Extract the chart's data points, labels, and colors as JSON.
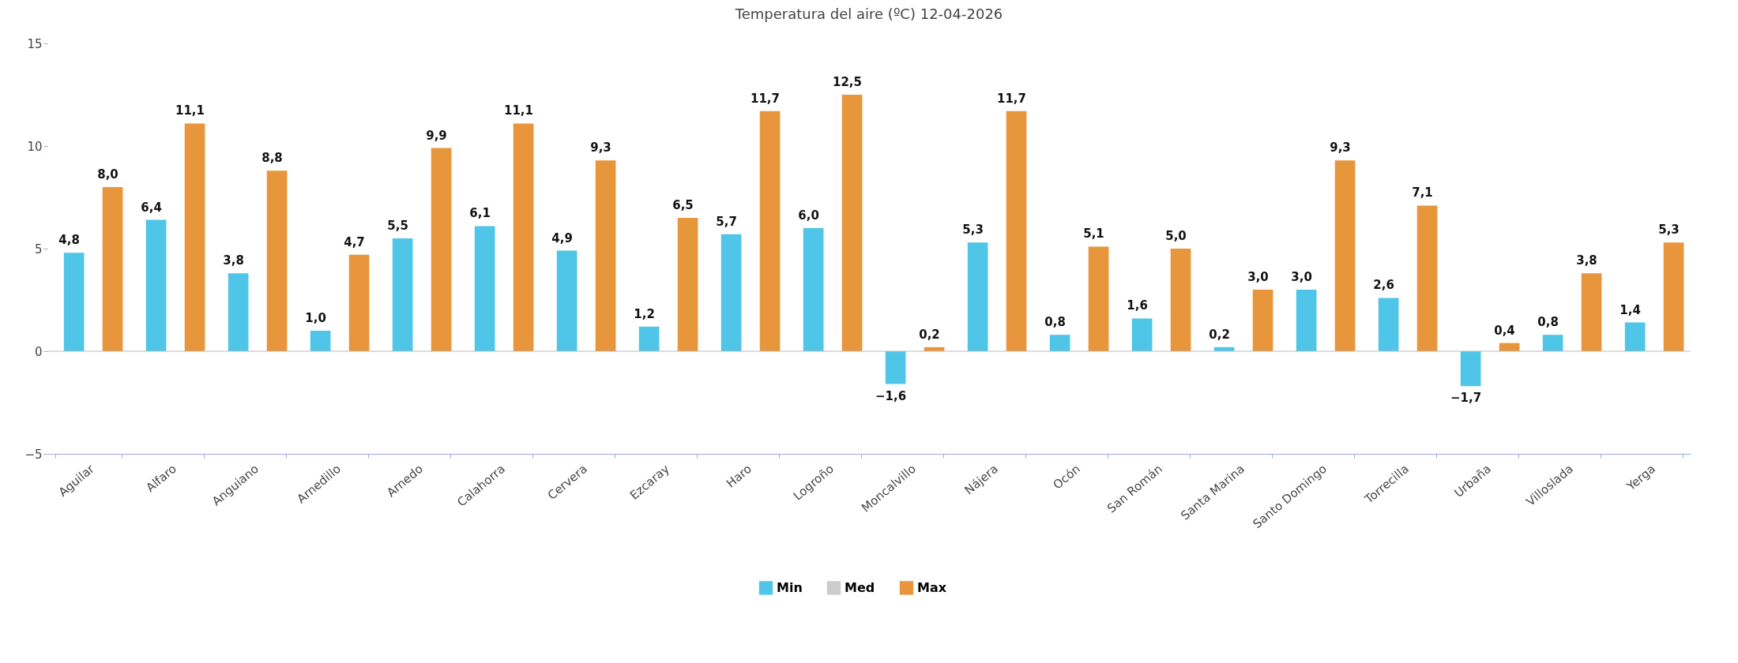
{
  "chart_data": {
    "type": "bar",
    "title": "Temperatura del aire (ºC) 12-04-2026",
    "categories": [
      "Aguilar",
      "Alfaro",
      "Anguiano",
      "Arnedillo",
      "Arnedo",
      "Calahorra",
      "Cervera",
      "Ezcaray",
      "Haro",
      "Logroño",
      "Moncalvillo",
      "Nájera",
      "Ocón",
      "San Román",
      "Santa Marina",
      "Santo Domingo",
      "Torrecilla",
      "Urbaña",
      "Villoslada",
      "Yerga"
    ],
    "series": [
      {
        "name": "Min",
        "color": "#4fc6e8",
        "values": [
          4.8,
          6.4,
          3.8,
          1.0,
          5.5,
          6.1,
          4.9,
          1.2,
          5.7,
          6.0,
          -1.6,
          5.3,
          0.8,
          1.6,
          0.2,
          3.0,
          2.6,
          -1.7,
          0.8,
          1.4
        ],
        "value_labels": [
          "4,8",
          "6,4",
          "3,8",
          "1,0",
          "5,5",
          "6,1",
          "4,9",
          "1,2",
          "5,7",
          "6,0",
          "−1,6",
          "5,3",
          "0,8",
          "1,6",
          "0,2",
          "3,0",
          "2,6",
          "−1,7",
          "0,8",
          "1,4"
        ]
      },
      {
        "name": "Med",
        "color": "#cccccc",
        "values": [
          null,
          null,
          null,
          null,
          null,
          null,
          null,
          null,
          null,
          null,
          null,
          null,
          null,
          null,
          null,
          null,
          null,
          null,
          null,
          null
        ]
      },
      {
        "name": "Max",
        "color": "#e8963c",
        "values": [
          8.0,
          11.1,
          8.8,
          4.7,
          9.9,
          11.1,
          9.3,
          6.5,
          11.7,
          12.5,
          0.2,
          11.7,
          5.1,
          5.0,
          3.0,
          9.3,
          7.1,
          0.4,
          3.8,
          5.3
        ],
        "value_labels": [
          "8,0",
          "11,1",
          "8,8",
          "4,7",
          "9,9",
          "11,1",
          "9,3",
          "6,5",
          "11,7",
          "12,5",
          "0,2",
          "11,7",
          "5,1",
          "5,0",
          "3,0",
          "9,3",
          "7,1",
          "0,4",
          "3,8",
          "5,3"
        ]
      }
    ],
    "ylim": [
      -5,
      15
    ],
    "yticks": [
      -5,
      0,
      5,
      10,
      15
    ],
    "grid": false,
    "legend": "bottom",
    "ref_lines": [
      {
        "axis": "y",
        "value": 0,
        "color": "#bbbbbb"
      }
    ]
  }
}
